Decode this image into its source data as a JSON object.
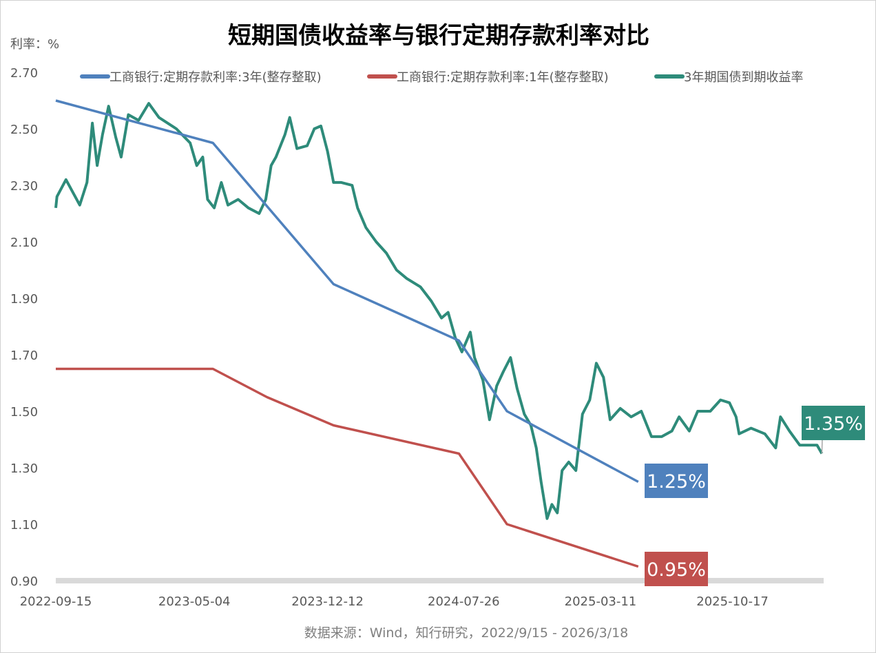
{
  "chart_data": {
    "type": "line",
    "title": "短期国债收益率与银行定期存款利率对比",
    "ylabel": "利率：%",
    "xlabel": "",
    "source": "数据来源：Wind，知行研究，2022/9/15 - 2026/3/18",
    "x_unit": "days since 2022-09-15",
    "xlim": [
      0,
      1280
    ],
    "ylim": [
      0.9,
      2.7
    ],
    "yticks": [
      "0.90",
      "1.10",
      "1.30",
      "1.50",
      "1.70",
      "1.90",
      "2.10",
      "2.30",
      "2.50",
      "2.70"
    ],
    "xticks": [
      {
        "day": 0,
        "label": "2022-09-15"
      },
      {
        "day": 231,
        "label": "2023-05-04"
      },
      {
        "day": 453,
        "label": "2023-12-12"
      },
      {
        "day": 680,
        "label": "2024-07-26"
      },
      {
        "day": 908,
        "label": "2025-03-11"
      },
      {
        "day": 1128,
        "label": "2025-10-17"
      }
    ],
    "legend_position": "top",
    "series": [
      {
        "name": "工商银行:定期存款利率:3年(整存整取)",
        "color": "#4f81bd",
        "end_label": "1.25%",
        "points": [
          [
            0,
            2.6
          ],
          [
            262,
            2.45
          ],
          [
            463,
            1.95
          ],
          [
            672,
            1.75
          ],
          [
            752,
            1.5
          ],
          [
            971,
            1.25
          ]
        ]
      },
      {
        "name": "工商银行:定期存款利率:1年(整存整取)",
        "color": "#c0504d",
        "end_label": "0.95%",
        "points": [
          [
            0,
            1.65
          ],
          [
            262,
            1.65
          ],
          [
            352,
            1.55
          ],
          [
            463,
            1.45
          ],
          [
            672,
            1.35
          ],
          [
            752,
            1.1
          ],
          [
            971,
            0.95
          ]
        ]
      },
      {
        "name": "3年期国债到期收益率",
        "color": "#2e8b7a",
        "end_label": "1.35%",
        "points": [
          [
            0,
            2.22
          ],
          [
            2,
            2.26
          ],
          [
            17,
            2.32
          ],
          [
            40,
            2.23
          ],
          [
            52,
            2.31
          ],
          [
            61,
            2.52
          ],
          [
            69,
            2.37
          ],
          [
            78,
            2.48
          ],
          [
            88,
            2.58
          ],
          [
            100,
            2.47
          ],
          [
            109,
            2.4
          ],
          [
            121,
            2.55
          ],
          [
            138,
            2.53
          ],
          [
            155,
            2.59
          ],
          [
            172,
            2.54
          ],
          [
            201,
            2.5
          ],
          [
            224,
            2.45
          ],
          [
            235,
            2.37
          ],
          [
            245,
            2.4
          ],
          [
            253,
            2.25
          ],
          [
            264,
            2.22
          ],
          [
            276,
            2.31
          ],
          [
            287,
            2.23
          ],
          [
            304,
            2.25
          ],
          [
            321,
            2.22
          ],
          [
            339,
            2.2
          ],
          [
            350,
            2.25
          ],
          [
            359,
            2.37
          ],
          [
            367,
            2.4
          ],
          [
            382,
            2.48
          ],
          [
            390,
            2.54
          ],
          [
            402,
            2.43
          ],
          [
            419,
            2.44
          ],
          [
            431,
            2.5
          ],
          [
            442,
            2.51
          ],
          [
            453,
            2.42
          ],
          [
            463,
            2.31
          ],
          [
            476,
            2.31
          ],
          [
            494,
            2.3
          ],
          [
            503,
            2.22
          ],
          [
            517,
            2.15
          ],
          [
            534,
            2.1
          ],
          [
            551,
            2.06
          ],
          [
            568,
            2.0
          ],
          [
            585,
            1.97
          ],
          [
            608,
            1.94
          ],
          [
            626,
            1.89
          ],
          [
            643,
            1.83
          ],
          [
            654,
            1.85
          ],
          [
            666,
            1.76
          ],
          [
            677,
            1.71
          ],
          [
            691,
            1.78
          ],
          [
            698,
            1.69
          ],
          [
            712,
            1.61
          ],
          [
            723,
            1.47
          ],
          [
            735,
            1.59
          ],
          [
            746,
            1.64
          ],
          [
            758,
            1.69
          ],
          [
            769,
            1.58
          ],
          [
            781,
            1.49
          ],
          [
            792,
            1.45
          ],
          [
            801,
            1.37
          ],
          [
            809,
            1.25
          ],
          [
            819,
            1.12
          ],
          [
            827,
            1.17
          ],
          [
            836,
            1.14
          ],
          [
            844,
            1.29
          ],
          [
            855,
            1.32
          ],
          [
            867,
            1.29
          ],
          [
            878,
            1.49
          ],
          [
            890,
            1.54
          ],
          [
            901,
            1.67
          ],
          [
            913,
            1.62
          ],
          [
            924,
            1.47
          ],
          [
            941,
            1.51
          ],
          [
            959,
            1.48
          ],
          [
            976,
            1.5
          ],
          [
            993,
            1.41
          ],
          [
            1010,
            1.41
          ],
          [
            1027,
            1.43
          ],
          [
            1039,
            1.48
          ],
          [
            1056,
            1.43
          ],
          [
            1070,
            1.5
          ],
          [
            1091,
            1.5
          ],
          [
            1108,
            1.54
          ],
          [
            1123,
            1.53
          ],
          [
            1134,
            1.48
          ],
          [
            1139,
            1.42
          ],
          [
            1159,
            1.44
          ],
          [
            1182,
            1.42
          ],
          [
            1200,
            1.37
          ],
          [
            1208,
            1.48
          ],
          [
            1223,
            1.43
          ],
          [
            1240,
            1.38
          ],
          [
            1257,
            1.38
          ],
          [
            1269,
            1.38
          ],
          [
            1277,
            1.35
          ]
        ]
      }
    ]
  }
}
